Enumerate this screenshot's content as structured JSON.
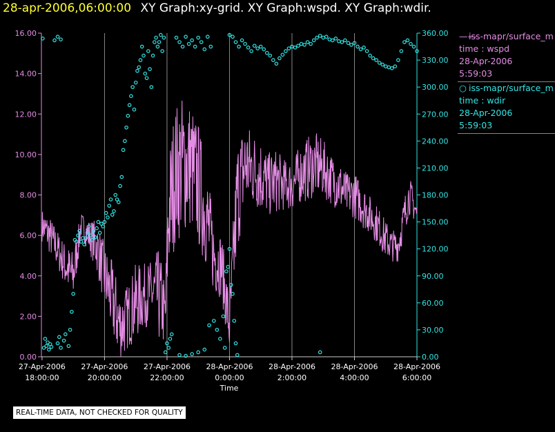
{
  "header": {
    "date_stamp": "28-apr-2006,06:00:00",
    "graph_titles": "XY Graph:xy-grid.  XY Graph:wspd.  XY Graph:wdir."
  },
  "legend": [
    {
      "symbol": "——",
      "lines": [
        "iss-mapr/surface_m",
        "time : wspd",
        "28-Apr-2006",
        "5:59:03"
      ],
      "color": "#e58de5"
    },
    {
      "symbol": "○",
      "lines": [
        "iss-mapr/surface_m",
        "time : wdir",
        "28-Apr-2006",
        "5:59:03"
      ],
      "color": "#33e6e6"
    }
  ],
  "disclaimer": "REAL-TIME DATA, NOT CHECKED FOR QUALITY",
  "colors": {
    "background": "#000000",
    "wspd": "#e58de5",
    "wdir": "#33e6e6",
    "grid": "#888888",
    "axis": "#cccccc",
    "title_date": "#ffff33"
  },
  "chart_data": {
    "type": "line",
    "xlabel": "Time",
    "x_ticks": [
      {
        "t": 18,
        "label1": "27-Apr-2006",
        "label2": "18:00:00"
      },
      {
        "t": 20,
        "label1": "27-Apr-2006",
        "label2": "20:00:00"
      },
      {
        "t": 22,
        "label1": "27-Apr-2006",
        "label2": "22:00:00"
      },
      {
        "t": 24,
        "label1": "28-Apr-2006",
        "label2": "0:00:00"
      },
      {
        "t": 26,
        "label1": "28-Apr-2006",
        "label2": "2:00:00"
      },
      {
        "t": 28,
        "label1": "28-Apr-2006",
        "label2": "4:00:00"
      },
      {
        "t": 30,
        "label1": "28-Apr-2006",
        "label2": "6:00:00"
      }
    ],
    "xlim": [
      17.98,
      30.0
    ],
    "y_left": {
      "lim": [
        0,
        16
      ],
      "ticks": [
        "0.00",
        "2.00",
        "4.00",
        "6.00",
        "8.00",
        "10.00",
        "12.00",
        "14.00",
        "16.00"
      ],
      "tick_values": [
        0,
        2,
        4,
        6,
        8,
        10,
        12,
        14,
        16
      ]
    },
    "y_right": {
      "lim": [
        0,
        360
      ],
      "ticks": [
        "0.00",
        "30.00",
        "60.00",
        "90.00",
        "120.00",
        "150.00",
        "180.00",
        "210.00",
        "240.00",
        "270.00",
        "300.00",
        "330.00",
        "360.00"
      ],
      "tick_values": [
        0,
        30,
        60,
        90,
        120,
        150,
        180,
        210,
        240,
        270,
        300,
        330,
        360
      ]
    },
    "grid": "vertical lines at hour ticks",
    "series": [
      {
        "name": "iss-mapr/surface_m time : wspd",
        "axis": "left",
        "style": "line",
        "t": [
          18.0,
          18.25,
          18.5,
          18.75,
          19.0,
          19.25,
          19.5,
          19.75,
          20.0,
          20.25,
          20.5,
          20.75,
          21.0,
          21.25,
          21.5,
          21.75,
          21.95,
          22.05,
          22.25,
          22.5,
          22.75,
          23.0,
          23.25,
          23.5,
          23.75,
          24.0,
          24.25,
          24.5,
          24.75,
          25.0,
          25.25,
          25.5,
          25.75,
          26.0,
          26.25,
          26.5,
          26.75,
          27.0,
          27.25,
          27.5,
          27.75,
          28.0,
          28.25,
          28.5,
          28.75,
          29.0,
          29.2,
          29.4,
          29.6,
          29.75,
          29.9,
          30.0
        ],
        "values": [
          6.5,
          6.0,
          5.3,
          4.5,
          4.0,
          6.5,
          6.0,
          5.5,
          4.0,
          2.8,
          1.5,
          2.0,
          2.7,
          3.0,
          3.2,
          3.0,
          2.0,
          7.0,
          9.0,
          9.5,
          9.5,
          8.5,
          7.0,
          5.0,
          4.5,
          1.5,
          8.0,
          9.5,
          9.3,
          9.0,
          8.5,
          8.7,
          8.5,
          8.5,
          9.0,
          9.3,
          9.5,
          9.3,
          8.8,
          8.5,
          8.0,
          8.0,
          7.5,
          7.0,
          6.5,
          5.8,
          5.5,
          5.5,
          7.0,
          8.0,
          7.5,
          7.0
        ],
        "amplitude": [
          0.5,
          0.6,
          0.6,
          0.7,
          0.8,
          0.4,
          0.5,
          0.8,
          1.0,
          1.2,
          1.2,
          1.0,
          1.2,
          1.0,
          1.0,
          1.5,
          1.0,
          2.0,
          2.2,
          2.2,
          2.0,
          2.0,
          1.6,
          1.2,
          1.0,
          1.0,
          1.8,
          1.4,
          1.2,
          1.2,
          1.0,
          1.0,
          0.8,
          0.8,
          0.9,
          1.0,
          1.0,
          0.9,
          0.8,
          0.8,
          0.7,
          0.7,
          0.7,
          0.6,
          0.6,
          0.6,
          0.5,
          0.5,
          0.6,
          0.6,
          0.5,
          0.5
        ]
      },
      {
        "name": "iss-mapr/surface_m time : wdir",
        "axis": "right",
        "style": "scatter",
        "points": [
          [
            18.02,
            354
          ],
          [
            18.06,
            10
          ],
          [
            18.1,
            20
          ],
          [
            18.14,
            12
          ],
          [
            18.18,
            16
          ],
          [
            18.22,
            8
          ],
          [
            18.26,
            14
          ],
          [
            18.3,
            11
          ],
          [
            18.4,
            352
          ],
          [
            18.5,
            356
          ],
          [
            18.6,
            353
          ],
          [
            18.5,
            15
          ],
          [
            18.55,
            22
          ],
          [
            18.6,
            10
          ],
          [
            18.7,
            18
          ],
          [
            18.75,
            25
          ],
          [
            18.85,
            12
          ],
          [
            18.9,
            30
          ],
          [
            18.95,
            50
          ],
          [
            19.0,
            70
          ],
          [
            19.05,
            130
          ],
          [
            19.1,
            128
          ],
          [
            19.15,
            135
          ],
          [
            19.2,
            140
          ],
          [
            19.25,
            128
          ],
          [
            19.3,
            132
          ],
          [
            19.35,
            125
          ],
          [
            19.4,
            132
          ],
          [
            19.45,
            138
          ],
          [
            19.5,
            145
          ],
          [
            19.55,
            135
          ],
          [
            19.6,
            130
          ],
          [
            19.65,
            140
          ],
          [
            19.7,
            133
          ],
          [
            19.75,
            143
          ],
          [
            19.8,
            150
          ],
          [
            19.85,
            138
          ],
          [
            19.9,
            148
          ],
          [
            19.95,
            145
          ],
          [
            20.0,
            150
          ],
          [
            20.05,
            160
          ],
          [
            20.1,
            155
          ],
          [
            20.15,
            168
          ],
          [
            20.2,
            175
          ],
          [
            20.25,
            158
          ],
          [
            20.3,
            162
          ],
          [
            20.35,
            180
          ],
          [
            20.4,
            175
          ],
          [
            20.45,
            172
          ],
          [
            20.5,
            190
          ],
          [
            20.55,
            200
          ],
          [
            20.6,
            230
          ],
          [
            20.65,
            240
          ],
          [
            20.7,
            255
          ],
          [
            20.75,
            268
          ],
          [
            20.8,
            280
          ],
          [
            20.85,
            290
          ],
          [
            20.9,
            300
          ],
          [
            20.95,
            275
          ],
          [
            21.0,
            305
          ],
          [
            21.05,
            318
          ],
          [
            21.1,
            322
          ],
          [
            21.15,
            330
          ],
          [
            21.2,
            345
          ],
          [
            21.25,
            335
          ],
          [
            21.3,
            315
          ],
          [
            21.35,
            310
          ],
          [
            21.4,
            340
          ],
          [
            21.45,
            320
          ],
          [
            21.5,
            300
          ],
          [
            21.55,
            335
          ],
          [
            21.6,
            350
          ],
          [
            21.65,
            355
          ],
          [
            21.7,
            345
          ],
          [
            21.75,
            350
          ],
          [
            21.8,
            358
          ],
          [
            21.85,
            340
          ],
          [
            21.9,
            355
          ],
          [
            21.95,
            5
          ],
          [
            22.0,
            15
          ],
          [
            22.05,
            10
          ],
          [
            22.1,
            20
          ],
          [
            22.15,
            25
          ],
          [
            22.3,
            355
          ],
          [
            22.4,
            350
          ],
          [
            22.5,
            345
          ],
          [
            22.6,
            356
          ],
          [
            22.7,
            348
          ],
          [
            22.8,
            352
          ],
          [
            22.9,
            345
          ],
          [
            23.0,
            355
          ],
          [
            23.1,
            350
          ],
          [
            23.2,
            342
          ],
          [
            23.3,
            356
          ],
          [
            23.4,
            345
          ],
          [
            22.4,
            2
          ],
          [
            22.6,
            1
          ],
          [
            22.8,
            3
          ],
          [
            23.0,
            5
          ],
          [
            23.2,
            8
          ],
          [
            23.35,
            35
          ],
          [
            23.5,
            40
          ],
          [
            23.6,
            30
          ],
          [
            23.7,
            20
          ],
          [
            23.8,
            45
          ],
          [
            23.85,
            10
          ],
          [
            23.9,
            95
          ],
          [
            23.95,
            100
          ],
          [
            24.0,
            120
          ],
          [
            24.05,
            80
          ],
          [
            24.1,
            70
          ],
          [
            24.15,
            40
          ],
          [
            24.2,
            15
          ],
          [
            24.25,
            2
          ],
          [
            24.0,
            358
          ],
          [
            24.1,
            356
          ],
          [
            24.2,
            350
          ],
          [
            24.3,
            345
          ],
          [
            24.4,
            352
          ],
          [
            24.5,
            348
          ],
          [
            24.6,
            344
          ],
          [
            24.7,
            340
          ],
          [
            24.8,
            346
          ],
          [
            24.9,
            343
          ],
          [
            25.0,
            345
          ],
          [
            25.1,
            342
          ],
          [
            25.2,
            338
          ],
          [
            25.3,
            335
          ],
          [
            25.4,
            330
          ],
          [
            25.5,
            326
          ],
          [
            25.6,
            332
          ],
          [
            25.7,
            336
          ],
          [
            25.8,
            340
          ],
          [
            25.9,
            343
          ],
          [
            26.0,
            345
          ],
          [
            26.1,
            344
          ],
          [
            26.2,
            346
          ],
          [
            26.3,
            348
          ],
          [
            26.4,
            347
          ],
          [
            26.5,
            350
          ],
          [
            26.6,
            348
          ],
          [
            26.7,
            352
          ],
          [
            26.8,
            355
          ],
          [
            26.9,
            357
          ],
          [
            27.0,
            355
          ],
          [
            27.1,
            356
          ],
          [
            27.2,
            353
          ],
          [
            27.3,
            352
          ],
          [
            27.4,
            354
          ],
          [
            27.5,
            351
          ],
          [
            27.6,
            350
          ],
          [
            27.7,
            352
          ],
          [
            27.8,
            349
          ],
          [
            27.9,
            347
          ],
          [
            28.0,
            349
          ],
          [
            28.1,
            345
          ],
          [
            28.2,
            342
          ],
          [
            28.3,
            344
          ],
          [
            28.4,
            340
          ],
          [
            28.5,
            335
          ],
          [
            28.6,
            332
          ],
          [
            28.7,
            330
          ],
          [
            28.8,
            327
          ],
          [
            28.9,
            325
          ],
          [
            29.0,
            323
          ],
          [
            29.1,
            322
          ],
          [
            29.2,
            321
          ],
          [
            29.3,
            323
          ],
          [
            29.4,
            330
          ],
          [
            29.5,
            340
          ],
          [
            29.6,
            350
          ],
          [
            29.7,
            352
          ],
          [
            29.8,
            348
          ],
          [
            29.9,
            345
          ],
          [
            30.0,
            340
          ],
          [
            26.9,
            5
          ]
        ]
      }
    ]
  }
}
